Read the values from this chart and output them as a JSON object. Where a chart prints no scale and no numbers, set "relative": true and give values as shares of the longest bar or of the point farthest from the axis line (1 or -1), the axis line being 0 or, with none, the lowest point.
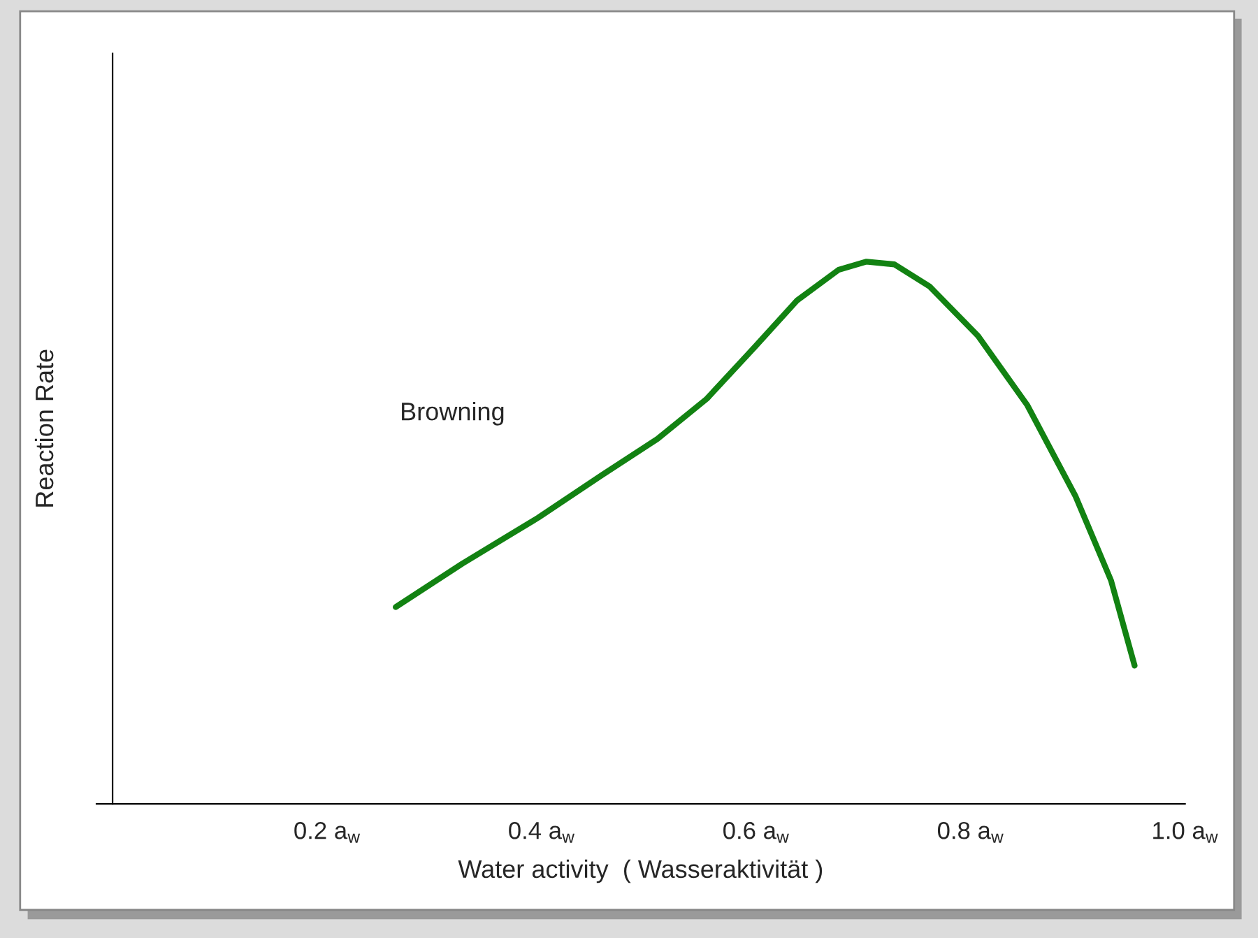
{
  "chart_data": {
    "type": "line",
    "relative": true,
    "xlabel": "Water activity  ( Wasseraktivität )",
    "ylabel": "Reaction Rate",
    "xlim": [
      -0.015,
      1.0
    ],
    "xticks": [
      {
        "value": 0.2,
        "label": "0.2 a$_{w}$"
      },
      {
        "value": 0.4,
        "label": "0.4 a$_{w}$"
      },
      {
        "value": 0.6,
        "label": "0.6 a$_{w}$"
      },
      {
        "value": 0.8,
        "label": "0.8 a$_{w}$"
      },
      {
        "value": 1.0,
        "label": "1.0 a$_{w}$"
      }
    ],
    "tick_labels": "x",
    "grid": false,
    "legend": false,
    "marker": "none",
    "line_style": "solid",
    "annotations": [
      "Browning"
    ],
    "series": [
      {
        "color": "#128212",
        "x": [
          0.264,
          0.326,
          0.397,
          0.456,
          0.508,
          0.554,
          0.599,
          0.638,
          0.677,
          0.703,
          0.729,
          0.762,
          0.807,
          0.853,
          0.898,
          0.931,
          0.953
        ],
        "values": [
          0.363,
          0.443,
          0.528,
          0.606,
          0.673,
          0.747,
          0.843,
          0.928,
          0.985,
          1.0,
          0.995,
          0.954,
          0.863,
          0.735,
          0.567,
          0.412,
          0.255
        ]
      }
    ]
  }
}
